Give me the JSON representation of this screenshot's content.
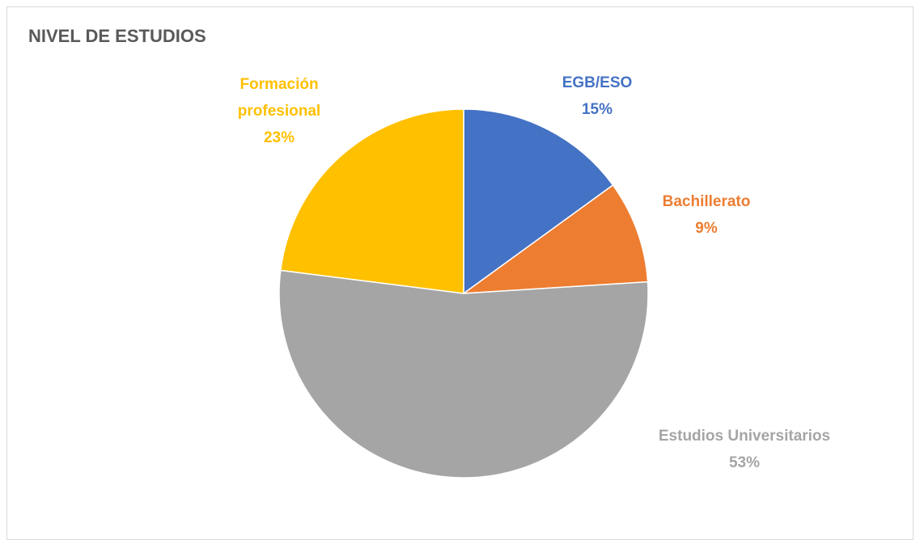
{
  "chart_data": {
    "type": "pie",
    "title": "NIVEL DE ESTUDIOS",
    "categories": [
      "EGB/ESO",
      "Bachillerato",
      "Estudios Universitarios",
      "Formación profesional"
    ],
    "values": [
      15,
      9,
      53,
      23
    ],
    "value_labels": [
      "15%",
      "9%",
      "53%",
      "23%"
    ],
    "colors": [
      "#4472c4",
      "#ed7d31",
      "#a5a5a5",
      "#ffc000"
    ]
  }
}
